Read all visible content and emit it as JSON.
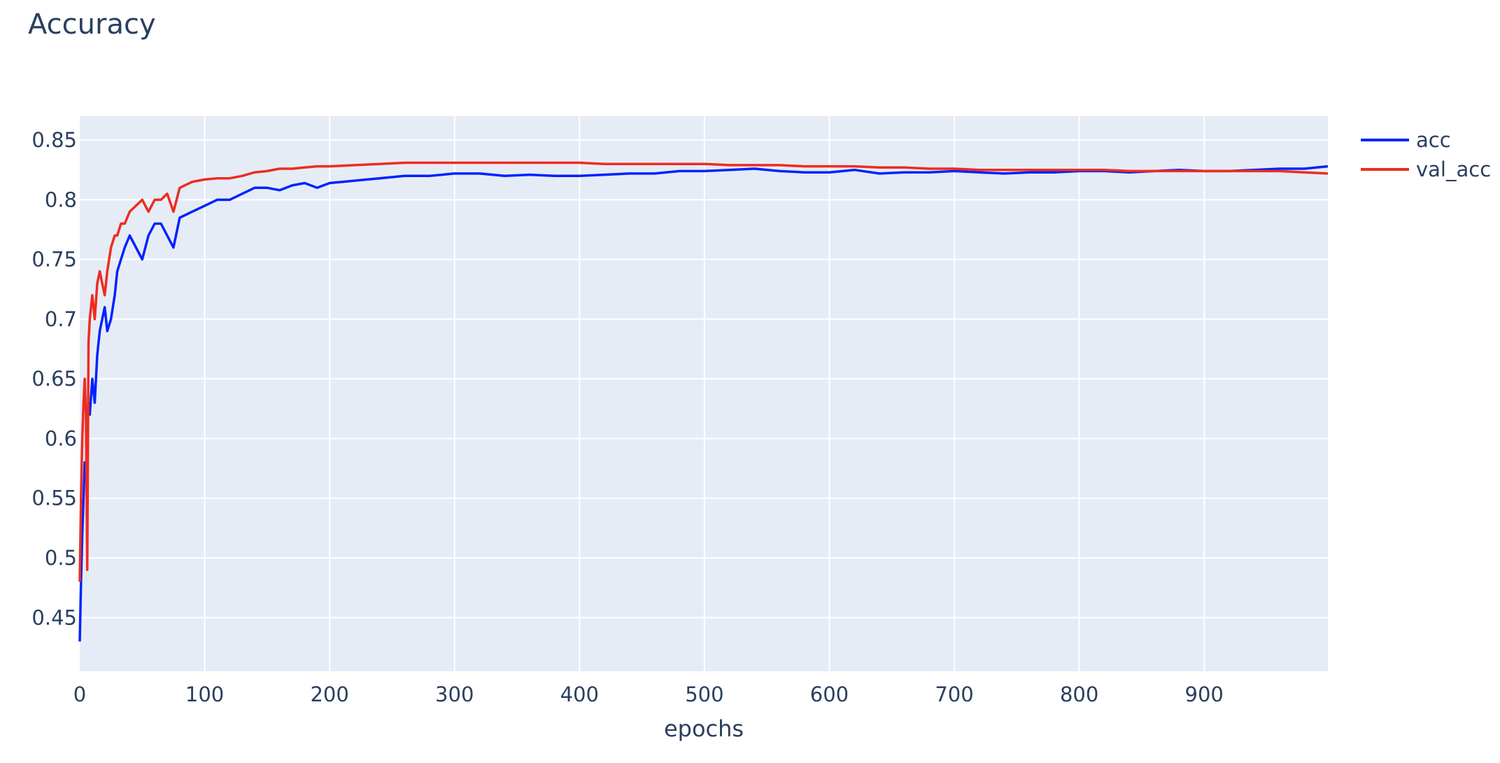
{
  "chart_data": {
    "type": "line",
    "title": "Accuracy",
    "xlabel": "epochs",
    "ylabel": "",
    "xlim": [
      0,
      999
    ],
    "ylim": [
      0.405,
      0.87
    ],
    "x_ticks": [
      0,
      100,
      200,
      300,
      400,
      500,
      600,
      700,
      800,
      900
    ],
    "x_tick_labels": [
      "0",
      "100",
      "200",
      "300",
      "400",
      "500",
      "600",
      "700",
      "800",
      "900"
    ],
    "y_ticks": [
      0.45,
      0.5,
      0.55,
      0.6,
      0.65,
      0.7,
      0.75,
      0.8,
      0.85
    ],
    "y_tick_labels": [
      "0.45",
      "0.5",
      "0.55",
      "0.6",
      "0.65",
      "0.7",
      "0.75",
      "0.8",
      "0.85"
    ],
    "grid": true,
    "legend_position": "top-right outside",
    "plot_background": "#e5ecf6",
    "grid_color": "#ffffff",
    "series": [
      {
        "name": "acc",
        "color": "#0022ff",
        "x": [
          0,
          1,
          2,
          3,
          4,
          5,
          6,
          7,
          8,
          10,
          12,
          14,
          16,
          18,
          20,
          22,
          25,
          28,
          30,
          33,
          36,
          40,
          45,
          50,
          55,
          60,
          65,
          70,
          75,
          80,
          90,
          100,
          110,
          120,
          130,
          140,
          150,
          160,
          170,
          180,
          190,
          200,
          220,
          240,
          260,
          280,
          300,
          320,
          340,
          360,
          380,
          400,
          420,
          440,
          460,
          480,
          500,
          520,
          540,
          560,
          580,
          600,
          620,
          640,
          660,
          680,
          700,
          720,
          740,
          760,
          780,
          800,
          820,
          840,
          860,
          880,
          900,
          920,
          940,
          960,
          980,
          999
        ],
        "values": [
          0.43,
          0.48,
          0.52,
          0.55,
          0.58,
          0.57,
          0.6,
          0.63,
          0.62,
          0.65,
          0.63,
          0.67,
          0.69,
          0.7,
          0.71,
          0.69,
          0.7,
          0.72,
          0.74,
          0.75,
          0.76,
          0.77,
          0.76,
          0.75,
          0.77,
          0.78,
          0.78,
          0.77,
          0.76,
          0.785,
          0.79,
          0.795,
          0.8,
          0.8,
          0.805,
          0.81,
          0.81,
          0.808,
          0.812,
          0.814,
          0.81,
          0.814,
          0.816,
          0.818,
          0.82,
          0.82,
          0.822,
          0.822,
          0.82,
          0.821,
          0.82,
          0.82,
          0.821,
          0.822,
          0.822,
          0.824,
          0.824,
          0.825,
          0.826,
          0.824,
          0.823,
          0.823,
          0.825,
          0.822,
          0.823,
          0.823,
          0.824,
          0.823,
          0.822,
          0.823,
          0.823,
          0.824,
          0.824,
          0.823,
          0.824,
          0.825,
          0.824,
          0.824,
          0.825,
          0.826,
          0.826,
          0.828
        ]
      },
      {
        "name": "val_acc",
        "color": "#ef2b1f",
        "x": [
          0,
          1,
          2,
          3,
          4,
          5,
          6,
          7,
          8,
          10,
          12,
          14,
          16,
          18,
          20,
          22,
          25,
          28,
          30,
          33,
          36,
          40,
          45,
          50,
          55,
          60,
          65,
          70,
          75,
          80,
          90,
          100,
          110,
          120,
          130,
          140,
          150,
          160,
          170,
          180,
          190,
          200,
          220,
          240,
          260,
          280,
          300,
          320,
          340,
          360,
          380,
          400,
          420,
          440,
          460,
          480,
          500,
          520,
          540,
          560,
          580,
          600,
          620,
          640,
          660,
          680,
          700,
          720,
          740,
          760,
          780,
          800,
          820,
          840,
          860,
          880,
          900,
          920,
          940,
          960,
          980,
          999
        ],
        "values": [
          0.48,
          0.55,
          0.6,
          0.63,
          0.65,
          0.62,
          0.49,
          0.68,
          0.7,
          0.72,
          0.7,
          0.73,
          0.74,
          0.73,
          0.72,
          0.74,
          0.76,
          0.77,
          0.77,
          0.78,
          0.78,
          0.79,
          0.795,
          0.8,
          0.79,
          0.8,
          0.8,
          0.805,
          0.79,
          0.81,
          0.815,
          0.817,
          0.818,
          0.818,
          0.82,
          0.823,
          0.824,
          0.826,
          0.826,
          0.827,
          0.828,
          0.828,
          0.829,
          0.83,
          0.831,
          0.831,
          0.831,
          0.831,
          0.831,
          0.831,
          0.831,
          0.831,
          0.83,
          0.83,
          0.83,
          0.83,
          0.83,
          0.829,
          0.829,
          0.829,
          0.828,
          0.828,
          0.828,
          0.827,
          0.827,
          0.826,
          0.826,
          0.825,
          0.825,
          0.825,
          0.825,
          0.825,
          0.825,
          0.824,
          0.824,
          0.824,
          0.824,
          0.824,
          0.824,
          0.824,
          0.823,
          0.822
        ]
      }
    ]
  }
}
